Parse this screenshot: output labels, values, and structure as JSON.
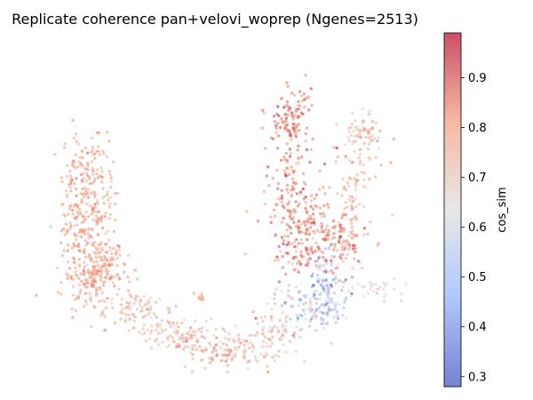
{
  "chart_data": {
    "type": "scatter",
    "title": "Replicate coherence pan+velovi_woprep (Ngenes=2513)",
    "colorbar": {
      "label": "cos_sim",
      "range": [
        0.28,
        0.99
      ],
      "ticks": [
        0.3,
        0.4,
        0.5,
        0.6,
        0.7,
        0.8,
        0.9
      ],
      "tick_labels": [
        "0.3",
        "0.4",
        "0.5",
        "0.6",
        "0.7",
        "0.8",
        "0.9"
      ],
      "colormap": "coolwarm",
      "colormap_stops": [
        "#3b4cc0",
        "#8db0fe",
        "#dddddd",
        "#f49a7b",
        "#b40426"
      ]
    },
    "axes": {
      "visible": false,
      "grid": false
    },
    "point_opacity": 0.6,
    "clusters": [
      {
        "x": 16.5,
        "y": 61.0,
        "spread": [
          3.5,
          6.0
        ],
        "n": 140,
        "value_mean": 0.78,
        "value_sd": 0.04
      },
      {
        "x": 15.0,
        "y": 45.0,
        "spread": [
          3.5,
          5.5
        ],
        "n": 150,
        "value_mean": 0.78,
        "value_sd": 0.04
      },
      {
        "x": 17.5,
        "y": 30.5,
        "spread": [
          4.5,
          4.5
        ],
        "n": 220,
        "value_mean": 0.79,
        "value_sd": 0.03
      },
      {
        "x": 29.0,
        "y": 19.5,
        "spread": [
          5.0,
          3.0
        ],
        "n": 90,
        "value_mean": 0.73,
        "value_sd": 0.05
      },
      {
        "x": 41.0,
        "y": 12.0,
        "spread": [
          6.0,
          2.5
        ],
        "n": 110,
        "value_mean": 0.72,
        "value_sd": 0.05
      },
      {
        "x": 53.0,
        "y": 6.5,
        "spread": [
          6.0,
          2.5
        ],
        "n": 110,
        "value_mean": 0.75,
        "value_sd": 0.06
      },
      {
        "x": 64.5,
        "y": 12.5,
        "spread": [
          4.0,
          3.5
        ],
        "n": 70,
        "value_mean": 0.7,
        "value_sd": 0.07
      },
      {
        "x": 73.0,
        "y": 20.0,
        "spread": [
          4.0,
          4.0
        ],
        "n": 90,
        "value_mean": 0.58,
        "value_sd": 0.1
      },
      {
        "x": 80.5,
        "y": 26.0,
        "spread": [
          2.5,
          5.5
        ],
        "n": 110,
        "value_mean": 0.52,
        "value_sd": 0.11
      },
      {
        "x": 72.0,
        "y": 42.0,
        "spread": [
          4.5,
          6.0
        ],
        "n": 150,
        "value_mean": 0.85,
        "value_sd": 0.04
      },
      {
        "x": 82.0,
        "y": 41.0,
        "spread": [
          4.5,
          6.0
        ],
        "n": 140,
        "value_mean": 0.8,
        "value_sd": 0.07
      },
      {
        "x": 70.0,
        "y": 60.0,
        "spread": [
          3.0,
          6.0
        ],
        "n": 80,
        "value_mean": 0.84,
        "value_sd": 0.05
      },
      {
        "x": 69.5,
        "y": 77.0,
        "spread": [
          3.0,
          5.0
        ],
        "n": 100,
        "value_mean": 0.86,
        "value_sd": 0.04
      },
      {
        "x": 86.5,
        "y": 57.0,
        "spread": [
          2.5,
          6.0
        ],
        "n": 60,
        "value_mean": 0.76,
        "value_sd": 0.06
      },
      {
        "x": 89.5,
        "y": 72.0,
        "spread": [
          3.0,
          3.5
        ],
        "n": 70,
        "value_mean": 0.74,
        "value_sd": 0.06
      },
      {
        "x": 93.0,
        "y": 25.5,
        "spread": [
          4.0,
          1.5
        ],
        "n": 30,
        "value_mean": 0.64,
        "value_sd": 0.06
      },
      {
        "x": 46.0,
        "y": 23.0,
        "spread": [
          0.8,
          1.0
        ],
        "n": 10,
        "value_mean": 0.76,
        "value_sd": 0.03
      }
    ]
  }
}
